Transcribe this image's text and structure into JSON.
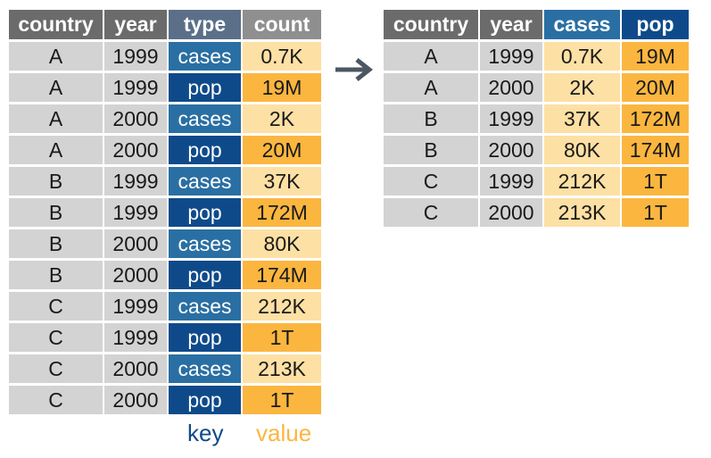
{
  "left_table": {
    "headers": [
      "country",
      "year",
      "type",
      "count"
    ],
    "rows": [
      [
        "A",
        "1999",
        "cases",
        "0.7K"
      ],
      [
        "A",
        "1999",
        "pop",
        "19M"
      ],
      [
        "A",
        "2000",
        "cases",
        "2K"
      ],
      [
        "A",
        "2000",
        "pop",
        "20M"
      ],
      [
        "B",
        "1999",
        "cases",
        "37K"
      ],
      [
        "B",
        "1999",
        "pop",
        "172M"
      ],
      [
        "B",
        "2000",
        "cases",
        "80K"
      ],
      [
        "B",
        "2000",
        "pop",
        "174M"
      ],
      [
        "C",
        "1999",
        "cases",
        "212K"
      ],
      [
        "C",
        "1999",
        "pop",
        "1T"
      ],
      [
        "C",
        "2000",
        "cases",
        "213K"
      ],
      [
        "C",
        "2000",
        "pop",
        "1T"
      ]
    ]
  },
  "right_table": {
    "headers": [
      "country",
      "year",
      "cases",
      "pop"
    ],
    "rows": [
      [
        "A",
        "1999",
        "0.7K",
        "19M"
      ],
      [
        "A",
        "2000",
        "2K",
        "20M"
      ],
      [
        "B",
        "1999",
        "37K",
        "172M"
      ],
      [
        "B",
        "2000",
        "80K",
        "174M"
      ],
      [
        "C",
        "1999",
        "212K",
        "1T"
      ],
      [
        "C",
        "2000",
        "213K",
        "1T"
      ]
    ]
  },
  "legend": {
    "key": "key",
    "value": "value"
  },
  "colors": {
    "header_grey": "#6b6b6b",
    "cell_grey": "#d3d3d3",
    "cases_blue": "#2a6fa3",
    "pop_blue": "#0e4a8a",
    "value_light": "#fde0a4",
    "value_dark": "#fbb63f"
  },
  "icons": {
    "arrow": "arrow-right-icon"
  }
}
